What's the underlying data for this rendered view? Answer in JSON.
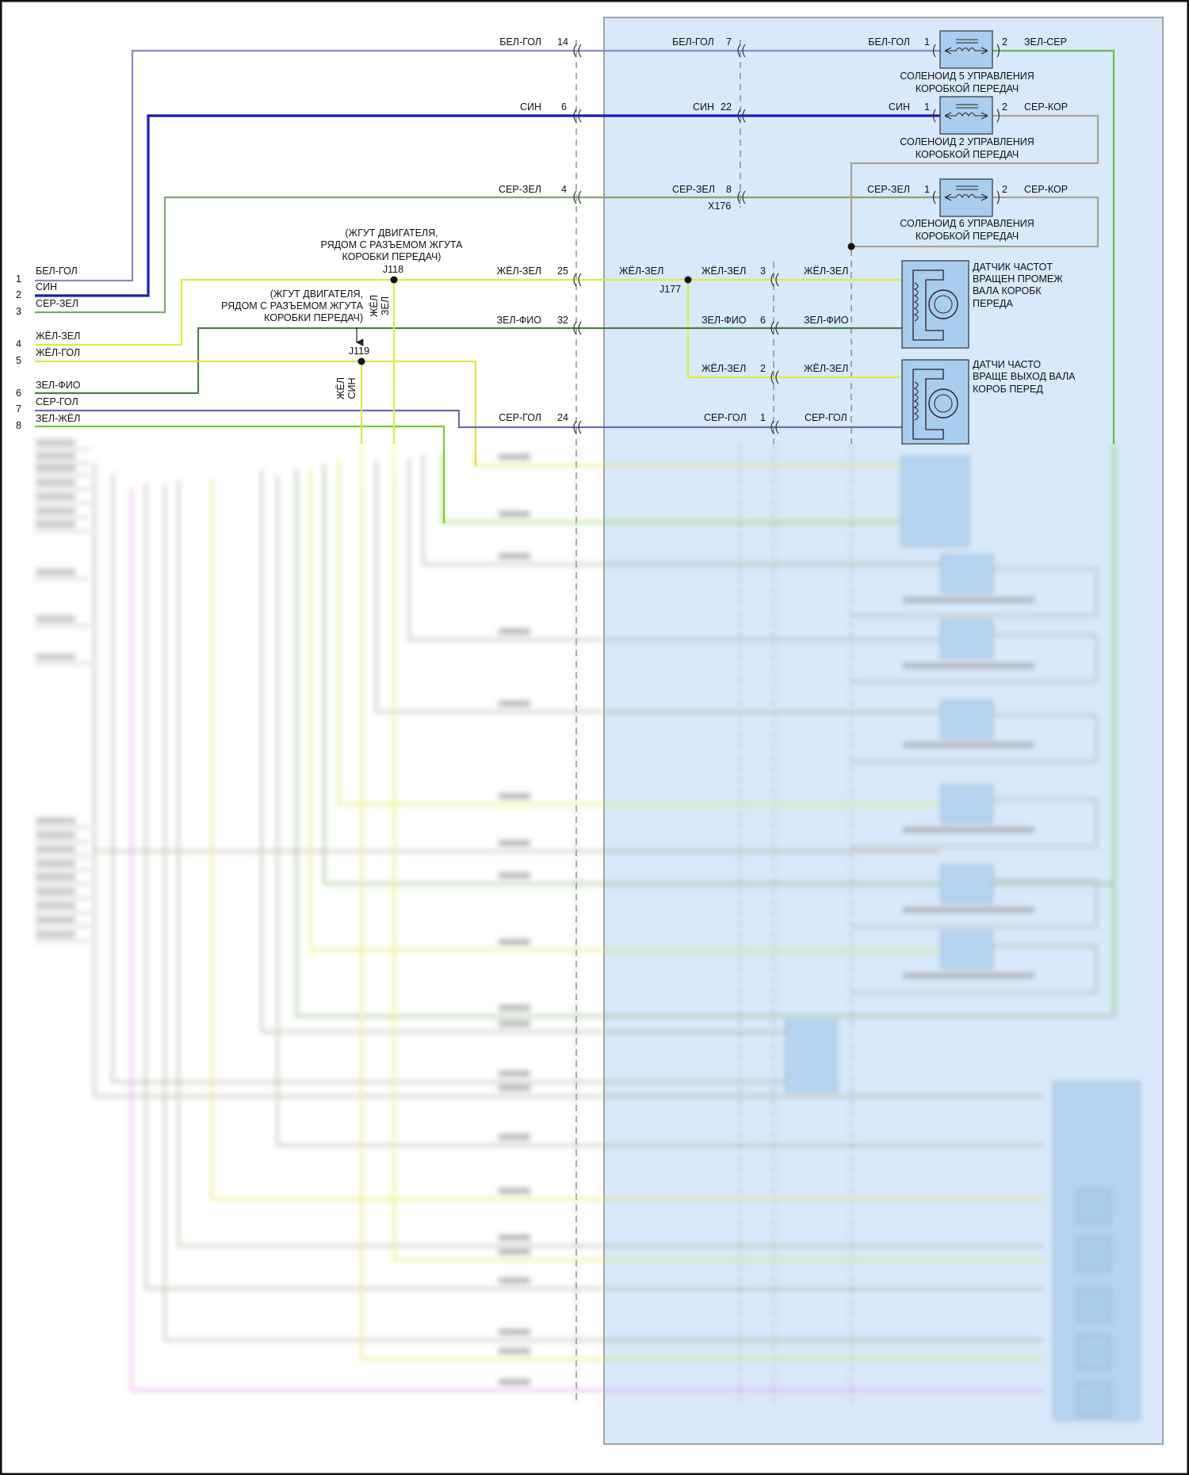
{
  "colors": {
    "bel_gol": "#8b8bcc",
    "sin": "#1b1bb0",
    "ser_zel": "#7ea874",
    "zhel_zel": "#d9ee3c",
    "zel_fio": "#4f7d49",
    "zhel_gol": "#e3e24a",
    "ser_gol": "#6c6cae",
    "zel_zhel": "#7acd2e",
    "zel_ser": "#66bb44",
    "ser_kor": "#aaa392",
    "panel_fill": "#d8e9f9",
    "component_fill": "#a9cdef"
  },
  "left_pins": [
    {
      "num": "1",
      "label": "БЕЛ-ГОЛ"
    },
    {
      "num": "2",
      "label": "СИН"
    },
    {
      "num": "3",
      "label": "СЕР-ЗЕЛ"
    },
    {
      "num": "4",
      "label": "ЖЁЛ-ЗЕЛ"
    },
    {
      "num": "5",
      "label": "ЖЁЛ-ГОЛ"
    },
    {
      "num": "6",
      "label": "ЗЕЛ-ФИО"
    },
    {
      "num": "7",
      "label": "СЕР-ГОЛ"
    },
    {
      "num": "8",
      "label": "ЗЕЛ-ЖЁЛ"
    }
  ],
  "connector_main": [
    {
      "wire": "БЕЛ-ГОЛ",
      "pin": "14"
    },
    {
      "wire": "СИН",
      "pin": "6"
    },
    {
      "wire": "СЕР-ЗЕЛ",
      "pin": "4"
    },
    {
      "wire": "ЖЁЛ-ЗЕЛ",
      "pin": "25"
    },
    {
      "wire": "ЗЕЛ-ФИО",
      "pin": "32"
    },
    {
      "wire": "СЕР-ГОЛ",
      "pin": "24"
    }
  ],
  "splices": {
    "j118": {
      "id": "J118",
      "note": [
        "(ЖГУТ ДВИГАТЕЛЯ,",
        "РЯДОМ С РАЗЪЕМОМ ЖГУТА",
        "КОРОБКИ ПЕРЕДАЧ)"
      ],
      "branch_label": [
        "ЖЁЛ",
        "ЗЕЛ"
      ]
    },
    "j119": {
      "id": "J119",
      "note": [
        "(ЖГУТ ДВИГАТЕЛЯ,",
        "РЯДОМ С РАЗЪЕМОМ ЖГУТА",
        "КОРОБКИ ПЕРЕДАЧ)"
      ],
      "branch_label": [
        "ЖЁЛ",
        "СИН"
      ]
    },
    "j177": {
      "id": "J177",
      "wire_in": "ЖЁЛ-ЗЕЛ"
    }
  },
  "x176": {
    "id": "X176",
    "pins": [
      {
        "wire": "БЕЛ-ГОЛ",
        "pin": "7"
      },
      {
        "wire": "СИН",
        "pin": "22"
      },
      {
        "wire": "СЕР-ЗЕЛ",
        "pin": "8"
      }
    ]
  },
  "sensor_connector": [
    {
      "wire": "ЖЁЛ-ЗЕЛ",
      "pin": "3",
      "wire_out": "ЖЁЛ-ЗЕЛ"
    },
    {
      "wire": "ЗЕЛ-ФИО",
      "pin": "6",
      "wire_out": "ЗЕЛ-ФИО"
    },
    {
      "wire": "ЖЁЛ-ЗЕЛ",
      "pin": "2",
      "wire_out": "ЖЁЛ-ЗЕЛ"
    },
    {
      "wire": "СЕР-ГОЛ",
      "pin": "1",
      "wire_out": "СЕР-ГОЛ"
    }
  ],
  "solenoids": [
    {
      "in_wire": "БЕЛ-ГОЛ",
      "pin1": "1",
      "pin2": "2",
      "out_wire": "ЗЕЛ-СЕР",
      "caption": [
        "СОЛЕНОИД 5 УПРАВЛЕНИЯ",
        "КОРОБКОЙ ПЕРЕДАЧ"
      ]
    },
    {
      "in_wire": "СИН",
      "pin1": "1",
      "pin2": "2",
      "out_wire": "СЕР-КОР",
      "caption": [
        "СОЛЕНОИД 2 УПРАВЛЕНИЯ",
        "КОРОБКОЙ ПЕРЕДАЧ"
      ]
    },
    {
      "in_wire": "СЕР-ЗЕЛ",
      "pin1": "1",
      "pin2": "2",
      "out_wire": "СЕР-КОР",
      "caption": [
        "СОЛЕНОИД 6 УПРАВЛЕНИЯ",
        "КОРОБКОЙ ПЕРЕДАЧ"
      ]
    }
  ],
  "sensors": [
    {
      "caption": [
        "ДАТЧИК ЧАСТОТ",
        "ВРАЩЕН ПРОМЕЖ",
        "ВАЛА КОРОБК",
        "ПЕРЕДА"
      ]
    },
    {
      "caption": [
        "ДАТЧИ ЧАСТО",
        "ВРАЩЕ ВЫХОД ВАЛА",
        "КОРОБ ПЕРЕД"
      ]
    }
  ]
}
